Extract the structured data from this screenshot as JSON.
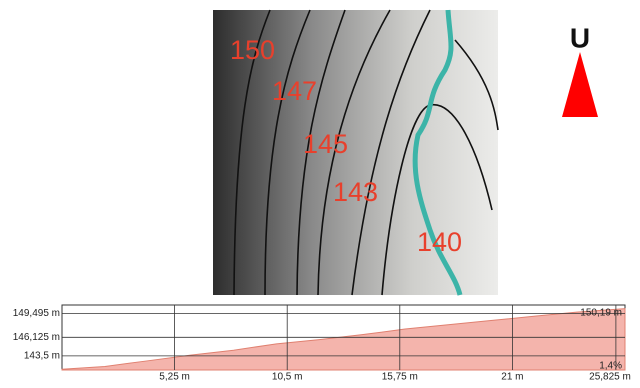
{
  "map": {
    "north_label": "U",
    "contour_labels": [
      "150",
      "147",
      "145",
      "143",
      "140"
    ]
  },
  "chart_data": {
    "type": "area",
    "color": "#f4b4ac",
    "x": [
      0,
      2,
      4,
      6,
      8,
      10,
      12,
      14,
      16,
      18,
      20,
      22,
      24,
      26.25
    ],
    "values": [
      141.6,
      142.0,
      142.8,
      143.6,
      144.3,
      145.2,
      145.8,
      146.5,
      147.3,
      147.9,
      148.5,
      149.1,
      149.7,
      150.19
    ],
    "xlim": [
      0,
      26.25
    ],
    "ylim": [
      141.5,
      150.7
    ],
    "xticks": [
      {
        "value": 5.25,
        "label": "5,25 m"
      },
      {
        "value": 10.5,
        "label": "10,5 m"
      },
      {
        "value": 15.75,
        "label": "15,75 m"
      },
      {
        "value": 21,
        "label": "21 m"
      },
      {
        "value": 25.825,
        "label": "25,825 m"
      }
    ],
    "yticks": [
      {
        "value": 149.495,
        "label": "149,495 m"
      },
      {
        "value": 146.125,
        "label": "146,125 m"
      },
      {
        "value": 143.5,
        "label": "143,5 m"
      }
    ],
    "end_label": "150,19 m",
    "grade_label": "1,4%",
    "grid": true
  }
}
